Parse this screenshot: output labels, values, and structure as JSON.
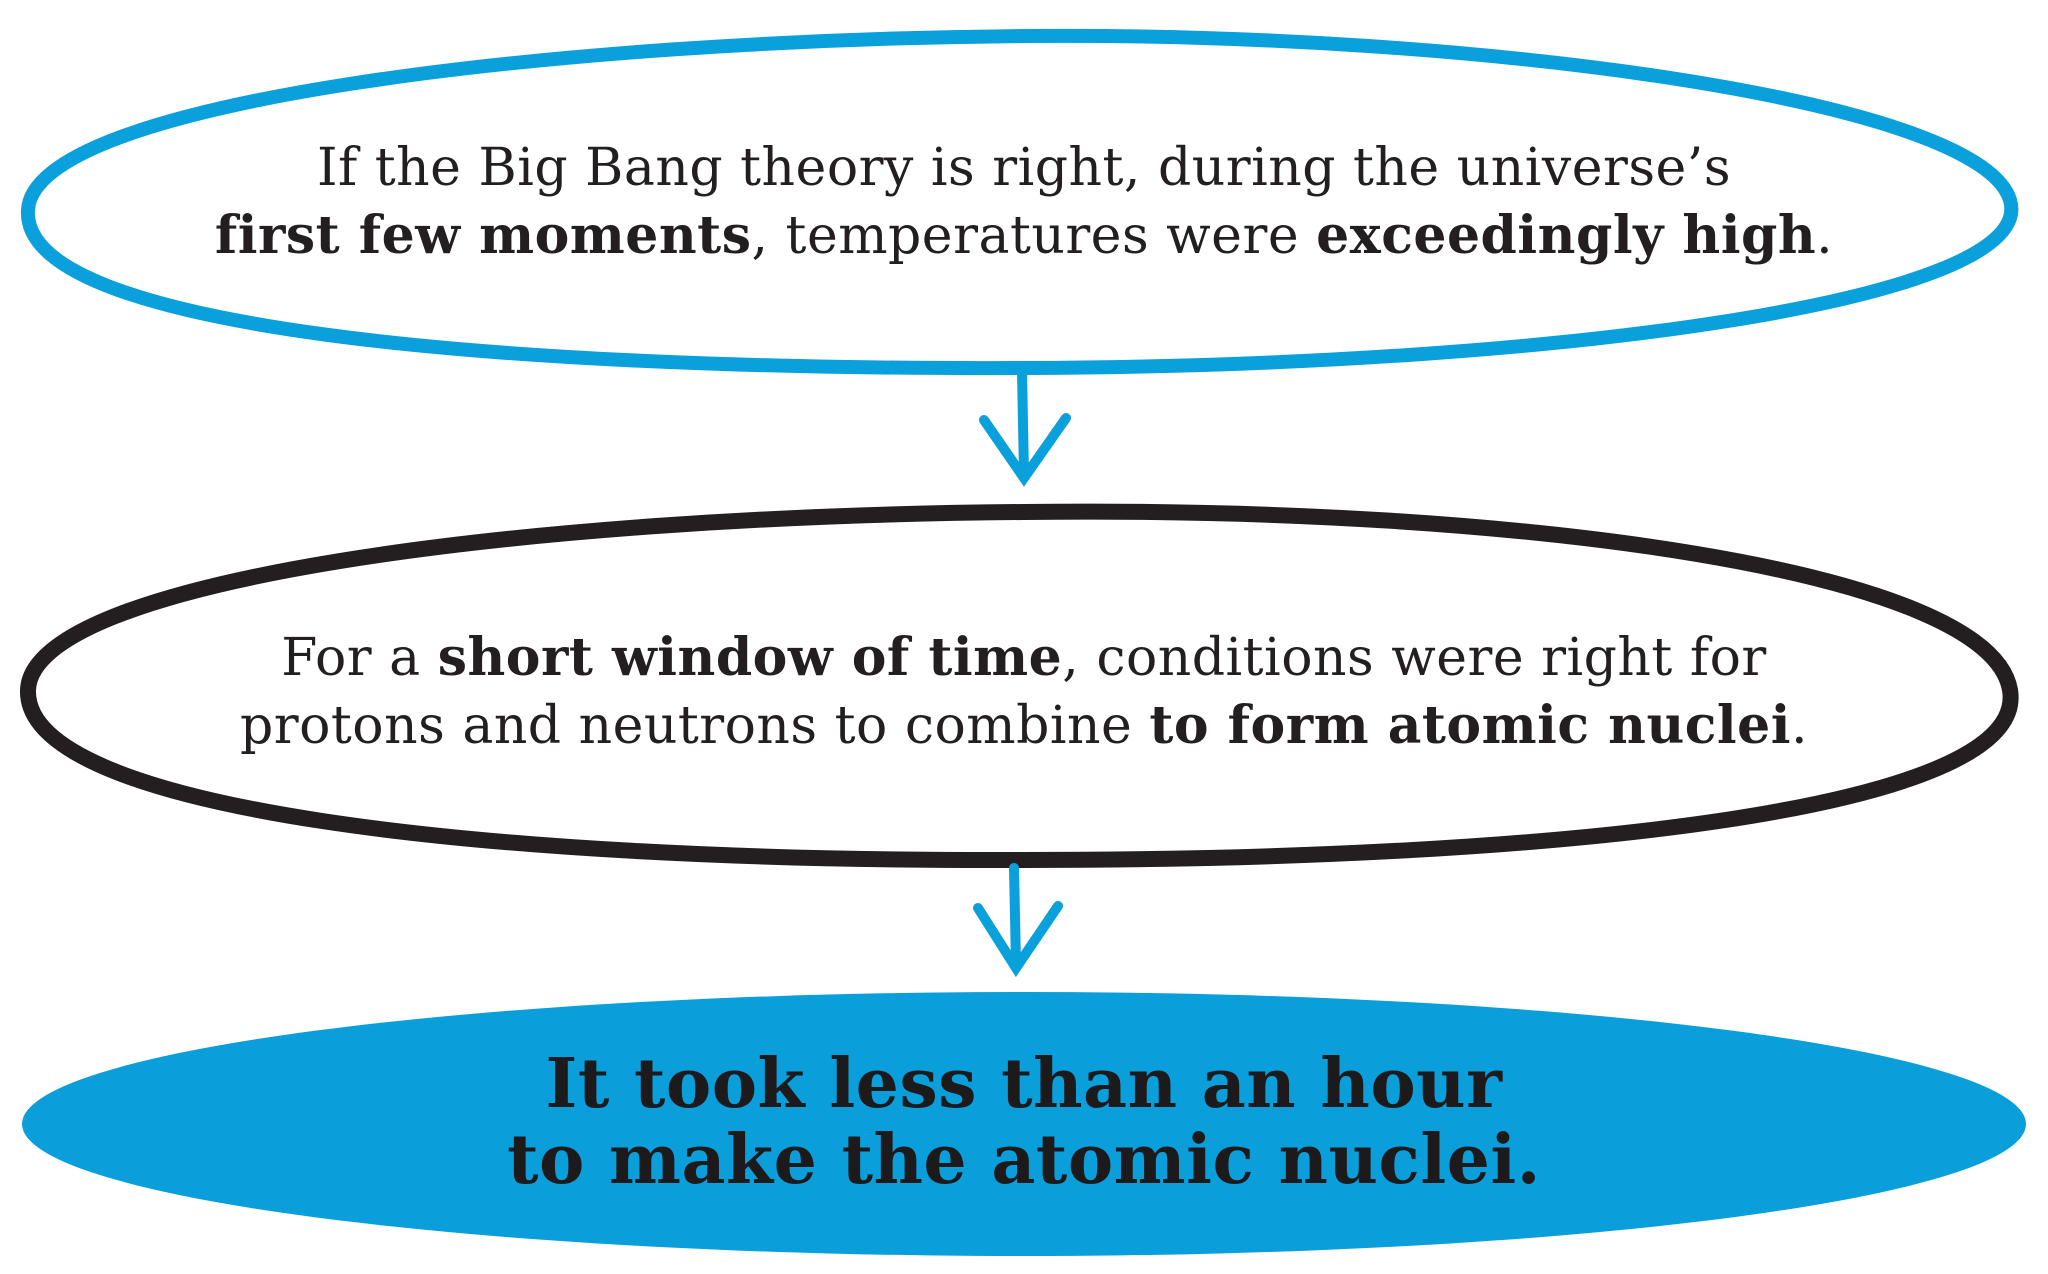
{
  "colors": {
    "blue": "#0aa0dc",
    "black": "#231f20",
    "fill_blue": "#0a9fdb"
  },
  "nodes": [
    {
      "parts": [
        {
          "text": "If the Big Bang theory is right, during the universe’s",
          "bold": false,
          "br": true
        },
        {
          "text": "first few moments",
          "bold": true
        },
        {
          "text": ", temperatures were ",
          "bold": false
        },
        {
          "text": "exceedingly high",
          "bold": true
        },
        {
          "text": ".",
          "bold": false
        }
      ]
    },
    {
      "parts": [
        {
          "text": "For a ",
          "bold": false
        },
        {
          "text": "short window of time",
          "bold": true
        },
        {
          "text": ", conditions were right for",
          "bold": false,
          "br": true
        },
        {
          "text": "protons and neutrons to combine ",
          "bold": false
        },
        {
          "text": "to form atomic nuclei",
          "bold": true
        },
        {
          "text": ".",
          "bold": false
        }
      ]
    },
    {
      "line1": "It took less than an hour",
      "line2": "to make the atomic nuclei."
    }
  ]
}
